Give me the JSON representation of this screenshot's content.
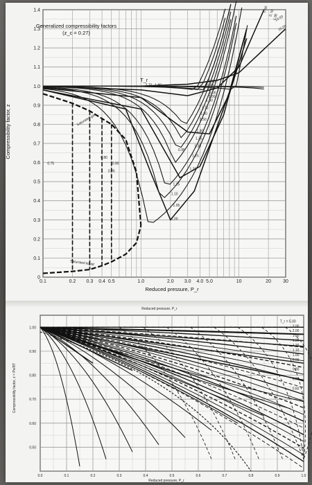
{
  "chart_data": [
    {
      "type": "line",
      "title": "Generalized compressibility factors",
      "subtitle": "(z_c = 0.27)",
      "xlabel": "Reduced pressure, P_r",
      "ylabel": "Compressibility factor, z",
      "x_scale": "log",
      "xlim": [
        0.1,
        30
      ],
      "ylim": [
        0.0,
        1.4
      ],
      "grid": true,
      "x_ticks": [
        "0.1",
        "0.2",
        "0.3",
        "0.4",
        "0.5",
        "1.0",
        "2.0",
        "3.0",
        "4.0",
        "5.0",
        "10",
        "20",
        "30"
      ],
      "y_ticks": [
        "0",
        "0.1",
        "0.2",
        "0.3",
        "0.4",
        "0.5",
        "0.6",
        "0.7",
        "0.8",
        "0.9",
        "1.0",
        "1.1",
        "1.2",
        "1.3",
        "1.4"
      ],
      "curve_parameter_label": "T_r",
      "curve_labels": [
        "15.00",
        "10.00",
        "6.00",
        "3.00",
        "2.00",
        "1.80",
        "1.70",
        "1.60",
        "1.50",
        "1.40",
        "1.35",
        "1.30",
        "1.25",
        "1.20",
        "1.15",
        "1.10",
        "1.05",
        "1.00",
        "0.95",
        "0.90",
        "0.85",
        "0.80",
        "0.75",
        "2.70",
        "1.80"
      ],
      "annotations": [
        "Saturated gas",
        "Saturated liquid",
        "0.50",
        "0.70",
        "1.00",
        "10.00",
        "15.00"
      ],
      "saturated_gas": [
        {
          "x": 0.1,
          "y": 0.96
        },
        {
          "x": 0.2,
          "y": 0.91
        },
        {
          "x": 0.3,
          "y": 0.87
        },
        {
          "x": 0.4,
          "y": 0.83
        },
        {
          "x": 0.5,
          "y": 0.8
        },
        {
          "x": 0.7,
          "y": 0.72
        },
        {
          "x": 0.9,
          "y": 0.55
        },
        {
          "x": 1.0,
          "y": 0.27
        }
      ],
      "saturated_liquid": [
        {
          "x": 0.1,
          "y": 0.02
        },
        {
          "x": 0.2,
          "y": 0.03
        },
        {
          "x": 0.3,
          "y": 0.04
        },
        {
          "x": 0.4,
          "y": 0.06
        },
        {
          "x": 0.5,
          "y": 0.08
        },
        {
          "x": 0.7,
          "y": 0.12
        },
        {
          "x": 0.9,
          "y": 0.18
        },
        {
          "x": 1.0,
          "y": 0.27
        }
      ],
      "series": [
        {
          "name": "15.00",
          "points": [
            {
              "x": 0.1,
              "y": 1.0
            },
            {
              "x": 1.0,
              "y": 1.0
            },
            {
              "x": 3.0,
              "y": 1.01
            },
            {
              "x": 6.0,
              "y": 1.03
            },
            {
              "x": 10,
              "y": 1.07
            },
            {
              "x": 30,
              "y": 1.3
            }
          ]
        },
        {
          "name": "2.00",
          "points": [
            {
              "x": 0.1,
              "y": 1.0
            },
            {
              "x": 1.0,
              "y": 0.98
            },
            {
              "x": 3.0,
              "y": 0.95
            },
            {
              "x": 6.0,
              "y": 0.99
            },
            {
              "x": 10,
              "y": 1.1
            },
            {
              "x": 18,
              "y": 1.4
            }
          ]
        },
        {
          "name": "1.50",
          "points": [
            {
              "x": 0.1,
              "y": 0.99
            },
            {
              "x": 1.0,
              "y": 0.94
            },
            {
              "x": 3.0,
              "y": 0.76
            },
            {
              "x": 5.0,
              "y": 0.75
            },
            {
              "x": 8.0,
              "y": 0.96
            },
            {
              "x": 12,
              "y": 1.25
            }
          ]
        },
        {
          "name": "1.20",
          "points": [
            {
              "x": 0.1,
              "y": 0.98
            },
            {
              "x": 1.0,
              "y": 0.88
            },
            {
              "x": 2.5,
              "y": 0.52
            },
            {
              "x": 4.0,
              "y": 0.58
            },
            {
              "x": 7.0,
              "y": 0.85
            },
            {
              "x": 12,
              "y": 1.3
            }
          ]
        },
        {
          "name": "1.05",
          "points": [
            {
              "x": 0.1,
              "y": 0.98
            },
            {
              "x": 0.7,
              "y": 0.88
            },
            {
              "x": 1.3,
              "y": 0.53
            },
            {
              "x": 2.0,
              "y": 0.3
            },
            {
              "x": 3.5,
              "y": 0.45
            },
            {
              "x": 8.0,
              "y": 0.97
            },
            {
              "x": 12,
              "y": 1.3
            }
          ]
        }
      ]
    },
    {
      "type": "line",
      "xlabel": "Reduced pressure, P_r",
      "ylabel": "Compressibility factor, z = Pv/RT",
      "xlim": [
        0.0,
        1.0
      ],
      "ylim": [
        0.4,
        1.05
      ],
      "grid": true,
      "x_ticks": [
        "0.0",
        "0.1",
        "0.2",
        "0.3",
        "0.4",
        "0.5",
        "0.6",
        "0.7",
        "0.8",
        "0.9",
        "1.0"
      ],
      "y_ticks": [
        "1.00",
        "0.90",
        "0.80",
        "0.70",
        "0.60",
        "0.50"
      ],
      "curve_labels": [
        "T_r = 5.00",
        "3.00",
        "2.00",
        "1.50",
        "1.30",
        "1.20",
        "1.10",
        "1.00",
        "0.90",
        "0.80",
        "0.70",
        "0.60"
      ],
      "series": [
        {
          "name": "5.00",
          "points": [
            {
              "x": 0.0,
              "y": 1.0
            },
            {
              "x": 1.0,
              "y": 1.0
            }
          ]
        },
        {
          "name": "2.00",
          "points": [
            {
              "x": 0.0,
              "y": 1.0
            },
            {
              "x": 1.0,
              "y": 0.97
            }
          ]
        },
        {
          "name": "1.30",
          "points": [
            {
              "x": 0.0,
              "y": 1.0
            },
            {
              "x": 1.0,
              "y": 0.92
            }
          ]
        },
        {
          "name": "1.10",
          "points": [
            {
              "x": 0.0,
              "y": 1.0
            },
            {
              "x": 1.0,
              "y": 0.85
            }
          ]
        },
        {
          "name": "1.00",
          "points": [
            {
              "x": 0.0,
              "y": 1.0
            },
            {
              "x": 1.0,
              "y": 0.78
            }
          ]
        },
        {
          "name": "0.90",
          "points": [
            {
              "x": 0.0,
              "y": 1.0
            },
            {
              "x": 0.6,
              "y": 0.78
            }
          ]
        },
        {
          "name": "0.80",
          "points": [
            {
              "x": 0.0,
              "y": 1.0
            },
            {
              "x": 0.35,
              "y": 0.82
            }
          ]
        },
        {
          "name": "0.70",
          "points": [
            {
              "x": 0.0,
              "y": 1.0
            },
            {
              "x": 0.2,
              "y": 0.85
            }
          ]
        }
      ]
    }
  ]
}
